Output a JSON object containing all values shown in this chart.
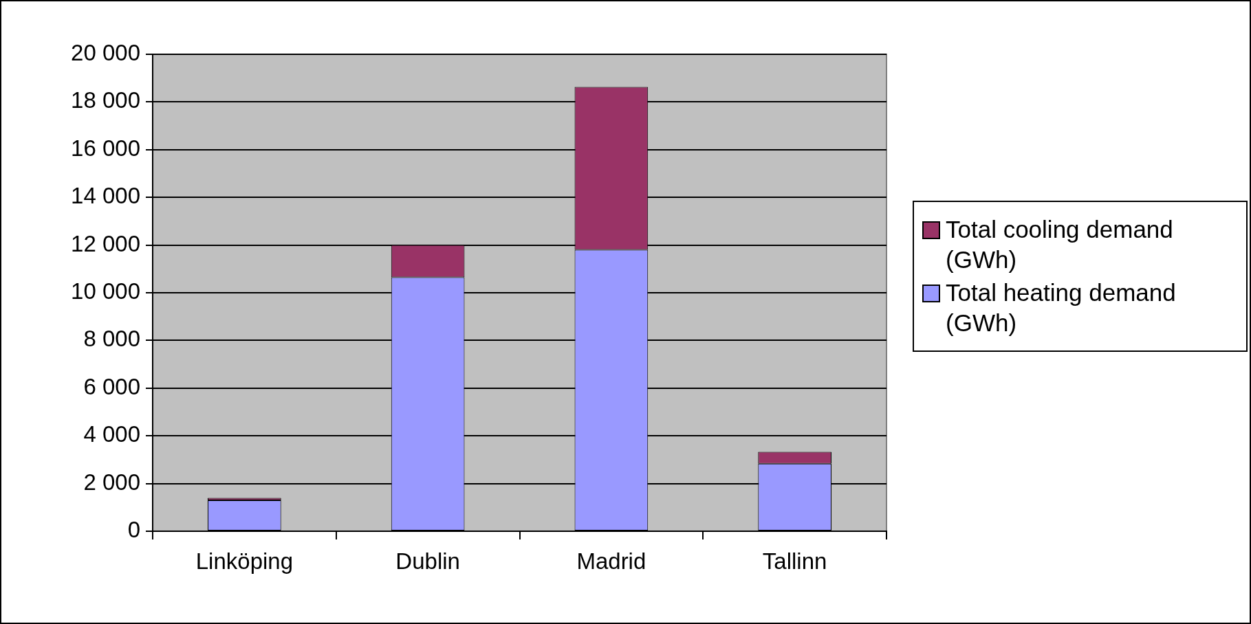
{
  "chart_data": {
    "type": "bar",
    "stacked": true,
    "categories": [
      "Linköping",
      "Dublin",
      "Madrid",
      "Tallinn"
    ],
    "series": [
      {
        "name": "Total heating demand (GWh)",
        "color": "#9999ff",
        "values": [
          1300,
          10650,
          11800,
          2830
        ]
      },
      {
        "name": "Total cooling demand (GWh)",
        "color": "#993366",
        "values": [
          100,
          1350,
          6830,
          500
        ]
      }
    ],
    "ylim": [
      0,
      20000
    ],
    "yticks": [
      {
        "value": 0,
        "label": "0"
      },
      {
        "value": 2000,
        "label": "2 000"
      },
      {
        "value": 4000,
        "label": "4 000"
      },
      {
        "value": 6000,
        "label": "6 000"
      },
      {
        "value": 8000,
        "label": "8 000"
      },
      {
        "value": 10000,
        "label": "10 000"
      },
      {
        "value": 12000,
        "label": "12 000"
      },
      {
        "value": 14000,
        "label": "14 000"
      },
      {
        "value": 16000,
        "label": "16 000"
      },
      {
        "value": 18000,
        "label": "18 000"
      },
      {
        "value": 20000,
        "label": "20 000"
      }
    ],
    "grid": "y",
    "legend": "right"
  }
}
